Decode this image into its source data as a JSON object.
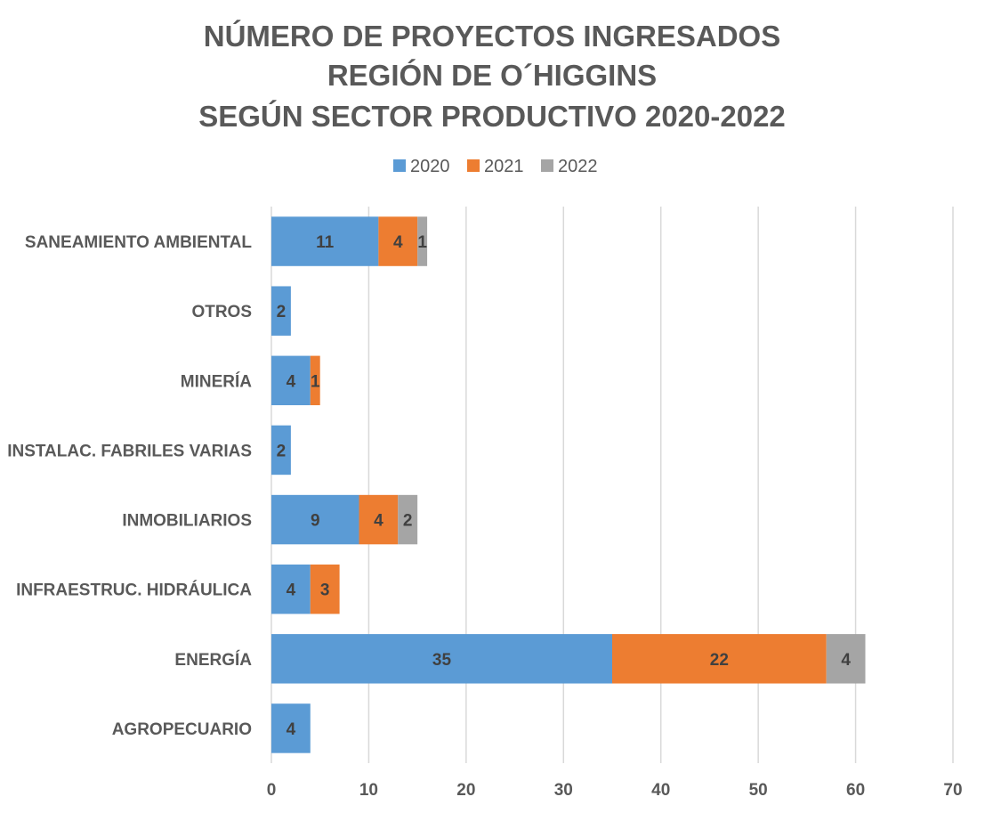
{
  "chart_data": {
    "type": "bar",
    "orientation": "horizontal",
    "stacked": true,
    "title_lines": [
      "NÚMERO DE PROYECTOS INGRESADOS",
      "REGIÓN DE O´HIGGINS",
      "SEGÚN SECTOR PRODUCTIVO 2020-2022"
    ],
    "categories": [
      "SANEAMIENTO AMBIENTAL",
      "OTROS",
      "MINERÍA",
      "INSTALAC. FABRILES VARIAS",
      "INMOBILIARIOS",
      "INFRAESTRUC. HIDRÁULICA",
      "ENERGÍA",
      "AGROPECUARIO"
    ],
    "series": [
      {
        "name": "2020",
        "color": "#5b9bd5",
        "values": [
          11,
          2,
          4,
          2,
          9,
          4,
          35,
          4
        ]
      },
      {
        "name": "2021",
        "color": "#ed7d31",
        "values": [
          4,
          0,
          1,
          0,
          4,
          3,
          22,
          0
        ]
      },
      {
        "name": "2022",
        "color": "#a5a5a5",
        "values": [
          1,
          0,
          0,
          0,
          2,
          0,
          4,
          0
        ]
      }
    ],
    "xlim": [
      0,
      70
    ],
    "x_ticks": [
      0,
      10,
      20,
      30,
      40,
      50,
      60,
      70
    ],
    "grid": true,
    "legend_position": "top-center",
    "xlabel": "",
    "ylabel": ""
  }
}
